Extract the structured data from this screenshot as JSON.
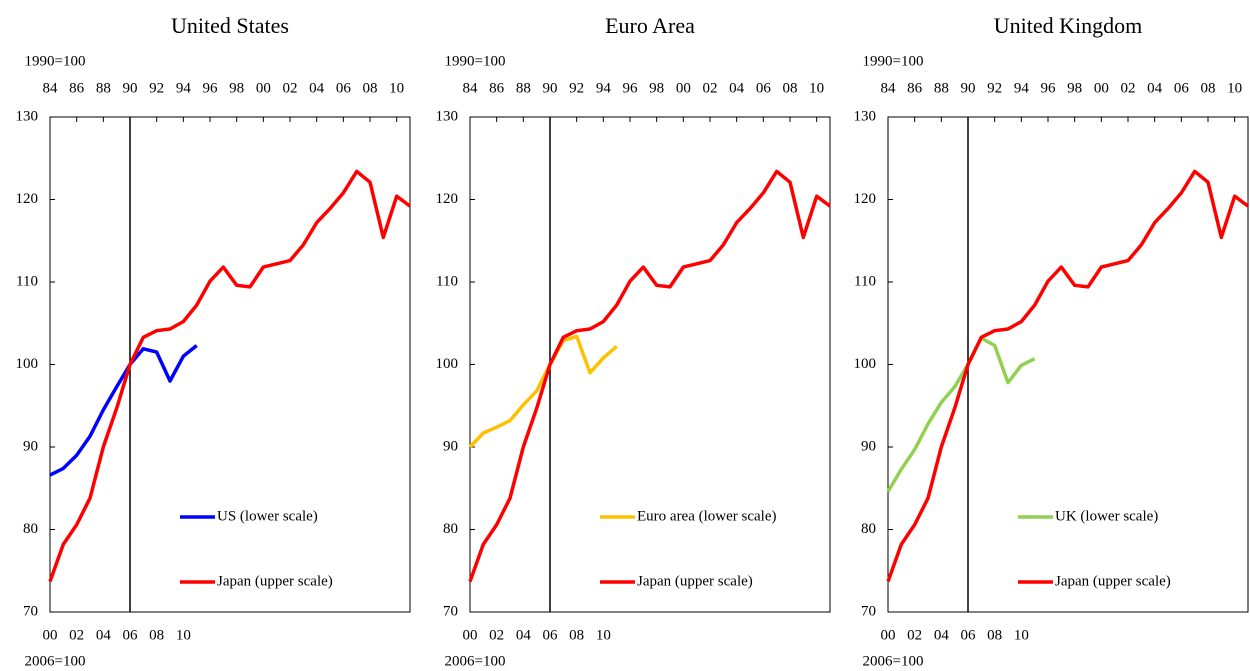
{
  "chart_data": [
    {
      "type": "line",
      "title": "United States",
      "xlabel": "1990=100",
      "x2label": "2006=100",
      "xlim": [
        1984,
        2011
      ],
      "xticks": [
        {
          "value": 1984,
          "label": "84"
        },
        {
          "value": 1986,
          "label": "86"
        },
        {
          "value": 1988,
          "label": "88"
        },
        {
          "value": 1990,
          "label": "90"
        },
        {
          "value": 1992,
          "label": "92"
        },
        {
          "value": 1994,
          "label": "94"
        },
        {
          "value": 1996,
          "label": "96"
        },
        {
          "value": 1998,
          "label": "98"
        },
        {
          "value": 2000,
          "label": "00"
        },
        {
          "value": 2002,
          "label": "02"
        },
        {
          "value": 2004,
          "label": "04"
        },
        {
          "value": 2006,
          "label": "06"
        },
        {
          "value": 2008,
          "label": "08"
        },
        {
          "value": 2010,
          "label": "10"
        }
      ],
      "x2lim": [
        2000,
        2027
      ],
      "x2ticks": [
        {
          "value": 2000,
          "label": "00"
        },
        {
          "value": 2002,
          "label": "02"
        },
        {
          "value": 2004,
          "label": "04"
        },
        {
          "value": 2006,
          "label": "06"
        },
        {
          "value": 2008,
          "label": "08"
        },
        {
          "value": 2010,
          "label": "10"
        }
      ],
      "ylim": [
        70,
        130
      ],
      "yticks": [
        70,
        80,
        90,
        100,
        110,
        120,
        130
      ],
      "vline": 1990,
      "legend": "lower right",
      "series": [
        {
          "name": "US (lower scale)",
          "color": "#0000ff",
          "axis": "x2",
          "x": [
            2000,
            2001,
            2002,
            2003,
            2004,
            2005,
            2006,
            2007,
            2008,
            2009,
            2010,
            2011
          ],
          "values": [
            86.6,
            87.4,
            89,
            91.3,
            94.5,
            97.3,
            100,
            101.9,
            101.5,
            98,
            101,
            102.3
          ]
        },
        {
          "name": "Japan (upper scale)",
          "color": "#ff0000",
          "x": [
            1984,
            1985,
            1986,
            1987,
            1988,
            1989,
            1990,
            1991,
            1992,
            1993,
            1994,
            1995,
            1996,
            1997,
            1998,
            1999,
            2000,
            2001,
            2002,
            2003,
            2004,
            2005,
            2006,
            2007,
            2008,
            2009,
            2010,
            2011
          ],
          "values": [
            73.7,
            78.2,
            80.6,
            83.8,
            90,
            94.7,
            100,
            103.3,
            104.1,
            104.3,
            105.2,
            107.2,
            110.1,
            111.8,
            109.6,
            109.4,
            111.8,
            112.2,
            112.6,
            114.5,
            117.2,
            118.9,
            120.8,
            123.4,
            122.1,
            115.4,
            120.4,
            119.2
          ]
        }
      ]
    },
    {
      "type": "line",
      "title": "Euro Area",
      "xlabel": "1990=100",
      "x2label": "2006=100",
      "xlim": [
        1984,
        2011
      ],
      "xticks": [
        {
          "value": 1984,
          "label": "84"
        },
        {
          "value": 1986,
          "label": "86"
        },
        {
          "value": 1988,
          "label": "88"
        },
        {
          "value": 1990,
          "label": "90"
        },
        {
          "value": 1992,
          "label": "92"
        },
        {
          "value": 1994,
          "label": "94"
        },
        {
          "value": 1996,
          "label": "96"
        },
        {
          "value": 1998,
          "label": "98"
        },
        {
          "value": 2000,
          "label": "00"
        },
        {
          "value": 2002,
          "label": "02"
        },
        {
          "value": 2004,
          "label": "04"
        },
        {
          "value": 2006,
          "label": "06"
        },
        {
          "value": 2008,
          "label": "08"
        },
        {
          "value": 2010,
          "label": "10"
        }
      ],
      "x2lim": [
        2000,
        2027
      ],
      "x2ticks": [
        {
          "value": 2000,
          "label": "00"
        },
        {
          "value": 2002,
          "label": "02"
        },
        {
          "value": 2004,
          "label": "04"
        },
        {
          "value": 2006,
          "label": "06"
        },
        {
          "value": 2008,
          "label": "08"
        },
        {
          "value": 2010,
          "label": "10"
        }
      ],
      "ylim": [
        70,
        130
      ],
      "yticks": [
        70,
        80,
        90,
        100,
        110,
        120,
        130
      ],
      "vline": 1990,
      "legend": "lower right",
      "series": [
        {
          "name": "Euro area (lower scale)",
          "color": "#ffc000",
          "axis": "x2",
          "x": [
            2000,
            2001,
            2002,
            2003,
            2004,
            2005,
            2006,
            2007,
            2008,
            2009,
            2010,
            2011
          ],
          "values": [
            90,
            91.7,
            92.4,
            93.2,
            95.1,
            96.8,
            100,
            102.9,
            103.4,
            99,
            100.8,
            102.2
          ]
        },
        {
          "name": "Japan (upper scale)",
          "color": "#ff0000",
          "x": [
            1984,
            1985,
            1986,
            1987,
            1988,
            1989,
            1990,
            1991,
            1992,
            1993,
            1994,
            1995,
            1996,
            1997,
            1998,
            1999,
            2000,
            2001,
            2002,
            2003,
            2004,
            2005,
            2006,
            2007,
            2008,
            2009,
            2010,
            2011
          ],
          "values": [
            73.7,
            78.2,
            80.6,
            83.8,
            90,
            94.7,
            100,
            103.3,
            104.1,
            104.3,
            105.2,
            107.2,
            110.1,
            111.8,
            109.6,
            109.4,
            111.8,
            112.2,
            112.6,
            114.5,
            117.2,
            118.9,
            120.8,
            123.4,
            122.1,
            115.4,
            120.4,
            119.2
          ]
        }
      ]
    },
    {
      "type": "line",
      "title": "United Kingdom",
      "xlabel": "1990=100",
      "x2label": "2006=100",
      "xlim": [
        1984,
        2011
      ],
      "xticks": [
        {
          "value": 1984,
          "label": "84"
        },
        {
          "value": 1986,
          "label": "86"
        },
        {
          "value": 1988,
          "label": "88"
        },
        {
          "value": 1990,
          "label": "90"
        },
        {
          "value": 1992,
          "label": "92"
        },
        {
          "value": 1994,
          "label": "94"
        },
        {
          "value": 1996,
          "label": "96"
        },
        {
          "value": 1998,
          "label": "98"
        },
        {
          "value": 2000,
          "label": "00"
        },
        {
          "value": 2002,
          "label": "02"
        },
        {
          "value": 2004,
          "label": "04"
        },
        {
          "value": 2006,
          "label": "06"
        },
        {
          "value": 2008,
          "label": "08"
        },
        {
          "value": 2010,
          "label": "10"
        }
      ],
      "x2lim": [
        2000,
        2027
      ],
      "x2ticks": [
        {
          "value": 2000,
          "label": "00"
        },
        {
          "value": 2002,
          "label": "02"
        },
        {
          "value": 2004,
          "label": "04"
        },
        {
          "value": 2006,
          "label": "06"
        },
        {
          "value": 2008,
          "label": "08"
        },
        {
          "value": 2010,
          "label": "10"
        }
      ],
      "ylim": [
        70,
        130
      ],
      "yticks": [
        70,
        80,
        90,
        100,
        110,
        120,
        130
      ],
      "vline": 1990,
      "legend": "lower right",
      "series": [
        {
          "name": "UK (lower scale)",
          "color": "#92d050",
          "axis": "x2",
          "x": [
            2000,
            2001,
            2002,
            2003,
            2004,
            2005,
            2006,
            2007,
            2008,
            2009,
            2010,
            2011
          ],
          "values": [
            84.6,
            87.3,
            89.7,
            92.8,
            95.4,
            97.3,
            100,
            103.2,
            102.3,
            97.8,
            99.9,
            100.7
          ]
        },
        {
          "name": "Japan (upper scale)",
          "color": "#ff0000",
          "x": [
            1984,
            1985,
            1986,
            1987,
            1988,
            1989,
            1990,
            1991,
            1992,
            1993,
            1994,
            1995,
            1996,
            1997,
            1998,
            1999,
            2000,
            2001,
            2002,
            2003,
            2004,
            2005,
            2006,
            2007,
            2008,
            2009,
            2010,
            2011
          ],
          "values": [
            73.7,
            78.2,
            80.6,
            83.8,
            90,
            94.7,
            100,
            103.3,
            104.1,
            104.3,
            105.2,
            107.2,
            110.1,
            111.8,
            109.6,
            109.4,
            111.8,
            112.2,
            112.6,
            114.5,
            117.2,
            118.9,
            120.8,
            123.4,
            122.1,
            115.4,
            120.4,
            119.2
          ]
        }
      ]
    }
  ]
}
